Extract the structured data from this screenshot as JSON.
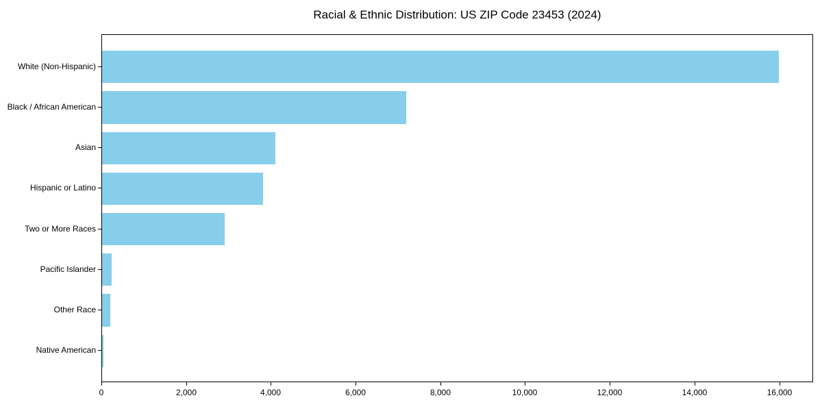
{
  "chart_data": {
    "type": "bar",
    "orientation": "horizontal",
    "title": "Racial & Ethnic Distribution: US ZIP Code 23453 (2024)",
    "categories": [
      "White (Non-Hispanic)",
      "Black / African American",
      "Asian",
      "Hispanic or Latino",
      "Two or More Races",
      "Pacific Islander",
      "Other Race",
      "Native American"
    ],
    "values": [
      16000,
      7200,
      4100,
      3800,
      2900,
      220,
      200,
      40
    ],
    "xlabel": "",
    "ylabel": "",
    "xlim": [
      0,
      16800
    ],
    "x_ticks": [
      0,
      2000,
      4000,
      6000,
      8000,
      10000,
      12000,
      14000,
      16000
    ],
    "x_tick_labels": [
      "0",
      "2,000",
      "4,000",
      "6,000",
      "8,000",
      "10,000",
      "12,000",
      "14,000",
      "16,000"
    ],
    "bar_color": "#87CEEB",
    "background_color": "#FFFFFF",
    "spine_color": "#000000",
    "text_color": "#000000",
    "grid": false,
    "legend": null
  }
}
